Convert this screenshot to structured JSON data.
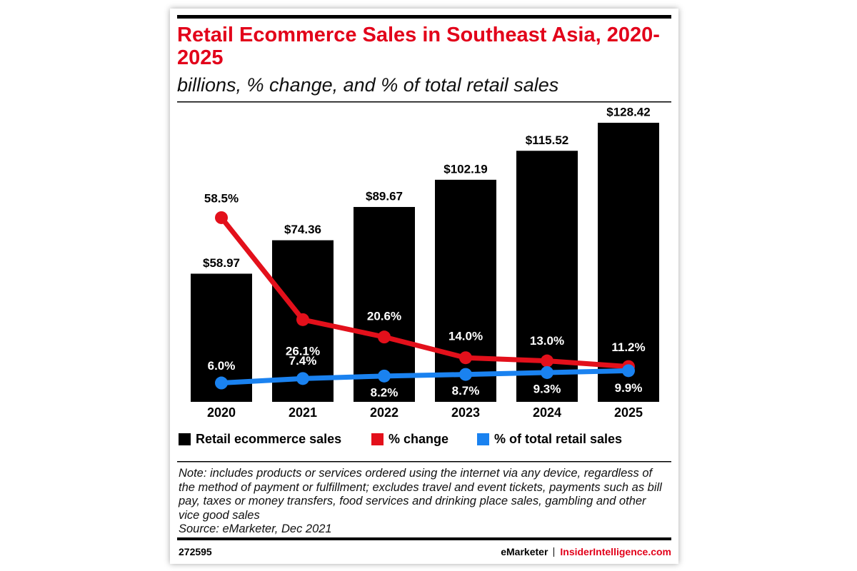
{
  "chart_data": {
    "type": "bar",
    "title": "Retail Ecommerce Sales in Southeast Asia, 2020-2025",
    "subtitle": "billions, % change, and % of total retail sales",
    "categories": [
      "2020",
      "2021",
      "2022",
      "2023",
      "2024",
      "2025"
    ],
    "series": [
      {
        "name": "Retail ecommerce sales",
        "type": "bar",
        "color": "#000000",
        "values": [
          58.97,
          74.36,
          89.67,
          102.19,
          115.52,
          128.42
        ],
        "value_labels": [
          "$58.97",
          "$74.36",
          "$89.67",
          "$102.19",
          "$115.52",
          "$128.42"
        ]
      },
      {
        "name": "% change",
        "type": "line",
        "axis": "y2",
        "color": "#e3101b",
        "values": [
          58.5,
          26.1,
          20.6,
          14.0,
          13.0,
          11.2
        ],
        "value_labels": [
          "58.5%",
          "26.1%",
          "20.6%",
          "14.0%",
          "13.0%",
          "11.2%"
        ]
      },
      {
        "name": "% of total retail sales",
        "type": "line",
        "axis": "y2",
        "color": "#1a82f0",
        "values": [
          6.0,
          7.4,
          8.2,
          8.7,
          9.3,
          9.9
        ],
        "value_labels": [
          "6.0%",
          "7.4%",
          "8.2%",
          "8.7%",
          "9.3%",
          "9.9%"
        ]
      }
    ],
    "note": "Note: includes products or services ordered using the internet via any device, regardless of the method of payment or fulfillment; excludes travel and event tickets, payments such as bill pay, taxes or money transfers, food services and drinking place sales, gambling and other vice good sales",
    "source": "Source: eMarketer, Dec 2021",
    "footer": {
      "id": "272595",
      "brand": "eMarketer",
      "site": "InsiderIntelligence.com"
    }
  }
}
